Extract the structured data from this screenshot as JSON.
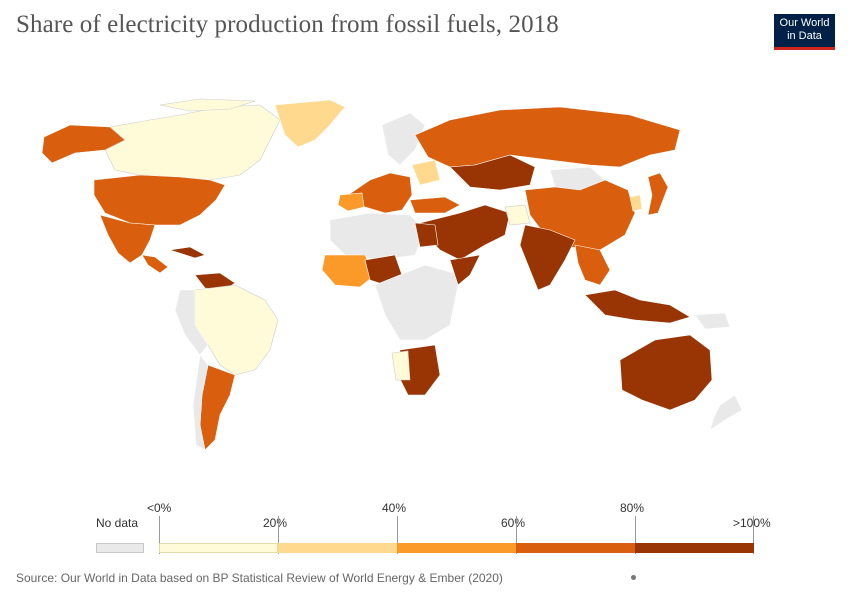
{
  "header": {
    "title": "Share of electricity production from fossil fuels, 2018",
    "logo_line1": "Our World",
    "logo_line2": "in Data"
  },
  "legend": {
    "no_data_label": "No data",
    "bins": [
      {
        "label": "<0%",
        "color": "#fffbd9"
      },
      {
        "label": "20%",
        "color": "#fed98e"
      },
      {
        "label": "40%",
        "color": "#fb9a29"
      },
      {
        "label": "60%",
        "color": "#d95f0e"
      },
      {
        "label": "80%",
        "color": "#993404"
      }
    ],
    "end_label": ">100%",
    "no_data_color": "#e9e9e9"
  },
  "footer": {
    "source": "Source: Our World in Data based on BP Statistical Review of World Energy & Ember (2020)"
  }
}
